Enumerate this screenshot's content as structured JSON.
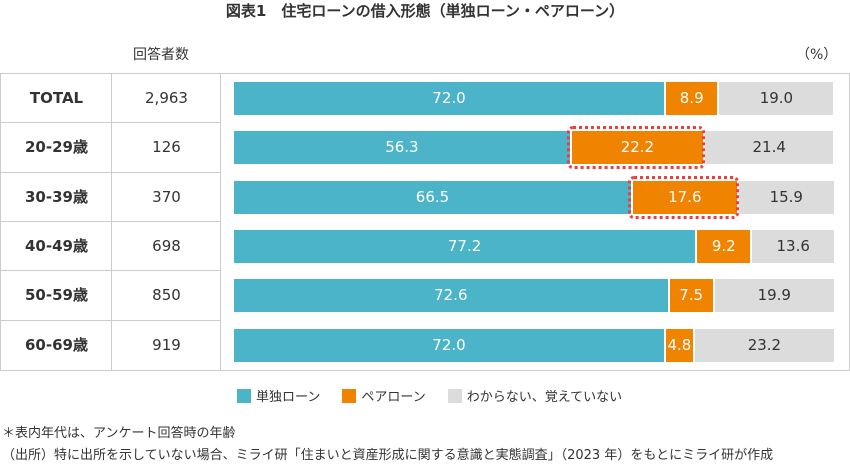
{
  "title": "図表1　住宅ローンの借入形態（単独ローン・ペアローン）",
  "count_header": "回答者数",
  "unit": "（%）",
  "colors": {
    "single": "#4bb4c8",
    "pair": "#f08300",
    "unknown": "#dcdcdc",
    "highlight": "#f03c3c"
  },
  "chart_data": {
    "type": "bar",
    "stacked": true,
    "orientation": "horizontal",
    "xlim": [
      0,
      100
    ],
    "categories": [
      "TOTAL",
      "20-29歳",
      "30-39歳",
      "40-49歳",
      "50-59歳",
      "60-69歳"
    ],
    "counts": [
      "2,963",
      "126",
      "370",
      "698",
      "850",
      "919"
    ],
    "series": [
      {
        "name": "単独ローン",
        "values": [
          72.0,
          56.3,
          66.5,
          77.2,
          72.6,
          72.0
        ]
      },
      {
        "name": "ペアローン",
        "values": [
          8.9,
          22.2,
          17.6,
          9.2,
          7.5,
          4.8
        ]
      },
      {
        "name": "わからない、覚えていない",
        "values": [
          19.0,
          21.4,
          15.9,
          13.6,
          19.9,
          23.2
        ]
      }
    ],
    "highlighted": [
      {
        "category": "20-29歳",
        "series": "ペアローン"
      },
      {
        "category": "30-39歳",
        "series": "ペアローン"
      }
    ],
    "legend": "bottom"
  },
  "notes": [
    "＊表内年代は、アンケート回答時の年齢",
    "（出所）特に出所を示していない場合、ミライ研「住まいと資産形成に関する意識と実態調査」（2023 年）をもとにミライ研が作成"
  ]
}
